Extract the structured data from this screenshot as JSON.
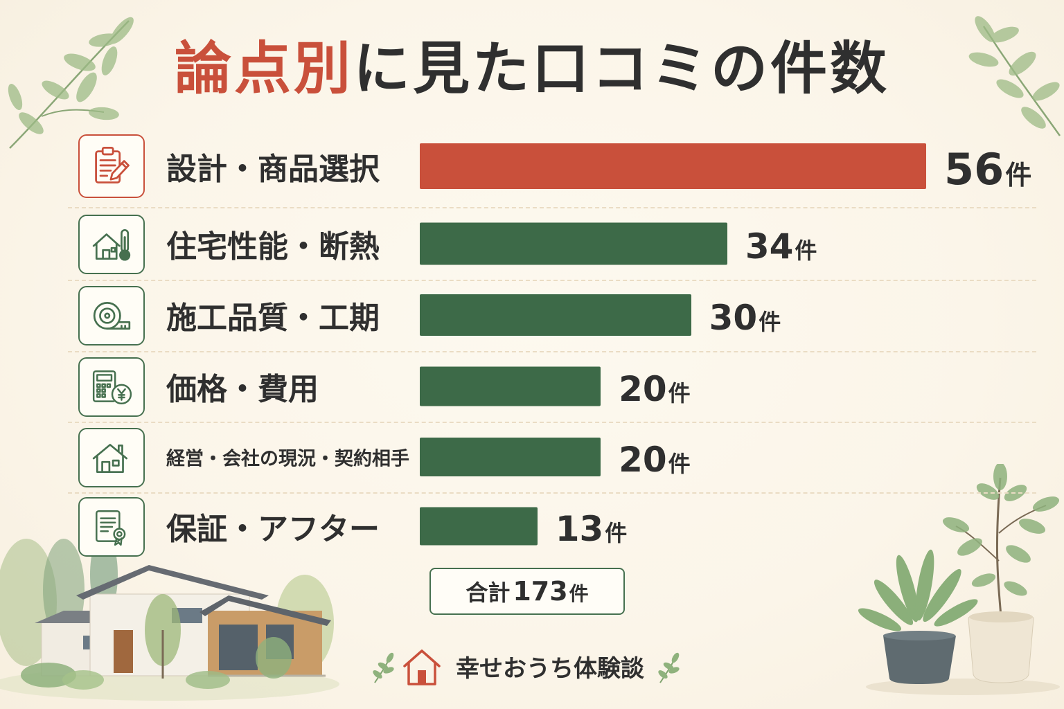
{
  "title": {
    "highlight": "論点別",
    "rest": "に見た口コミの件数"
  },
  "chart_data": {
    "type": "bar",
    "orientation": "horizontal",
    "categories": [
      "設計・商品選択",
      "住宅性能・断熱",
      "施工品質・工期",
      "価格・費用",
      "経営・会社の現況・契約相手",
      "保証・アフター"
    ],
    "values": [
      56,
      34,
      30,
      20,
      20,
      13
    ],
    "unit": "件",
    "bar_colors": [
      "#c9503b",
      "#3d6a48",
      "#3d6a48",
      "#3d6a48",
      "#3d6a48",
      "#3d6a48"
    ],
    "grid": false
  },
  "total": {
    "label": "合計",
    "value": 173,
    "unit": "件"
  },
  "row_icons": [
    "clipboard-pencil-icon",
    "house-thermometer-icon",
    "tape-measure-icon",
    "calculator-yen-icon",
    "house-icon",
    "certificate-document-icon"
  ],
  "footer": {
    "brand": "幸せおうち体験談",
    "icon": "house-icon"
  },
  "colors": {
    "accent": "#c9503b",
    "bar_green": "#3d6a48",
    "icon_outline": "#46704f",
    "text": "#2f2f2f",
    "background": "#fbf5e9"
  }
}
